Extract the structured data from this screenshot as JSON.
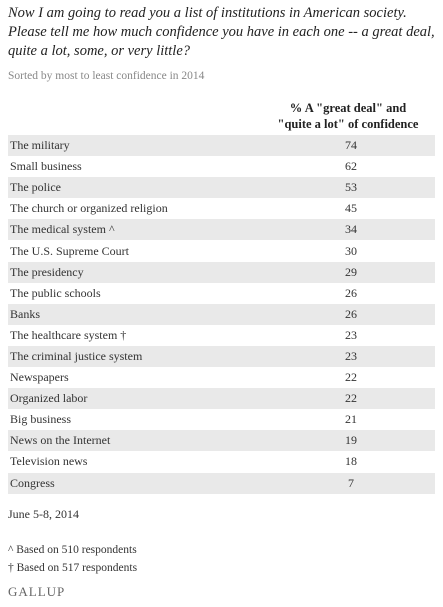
{
  "header": {
    "title": "Now I am going to read you a list of institutions in American society. Please tell me how much confidence you have in each one -- a great deal, quite a lot, some, or very little?",
    "subtitle": "Sorted by most to least confidence in 2014"
  },
  "table": {
    "column_header": [
      "% A \"great deal\" and",
      "\"quite a lot\" of confidence"
    ],
    "rows": [
      [
        "The military",
        74
      ],
      [
        "Small business",
        62
      ],
      [
        "The police",
        53
      ],
      [
        "The church or organized religion",
        45
      ],
      [
        "The medical system ^",
        34
      ],
      [
        "The U.S. Supreme Court",
        30
      ],
      [
        "The presidency",
        29
      ],
      [
        "The public schools",
        26
      ],
      [
        "Banks",
        26
      ],
      [
        "The healthcare system †",
        23
      ],
      [
        "The criminal justice system",
        23
      ],
      [
        "Newspapers",
        22
      ],
      [
        "Organized labor",
        22
      ],
      [
        "Big business",
        21
      ],
      [
        "News on the Internet",
        19
      ],
      [
        "Television news",
        18
      ],
      [
        "Congress",
        7
      ]
    ]
  },
  "footer": {
    "date": "June 5-8, 2014",
    "notes": [
      "^ Based on 510 respondents",
      "† Based on 517 respondents"
    ],
    "source": "GALLUP"
  }
}
